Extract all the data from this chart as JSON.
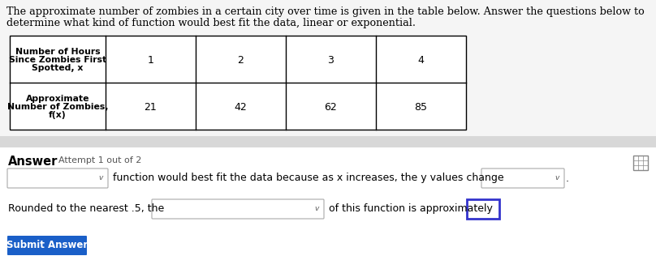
{
  "title_line1": "The approximate number of zombies in a certain city over time is given in the table below. Answer the questions below to",
  "title_line2": "determine what kind of function would best fit the data, linear or exponential.",
  "col_headers": [
    "1",
    "2",
    "3",
    "4"
  ],
  "row1_label": [
    "Number of Hours",
    "Since Zombies First",
    "Spotted, x"
  ],
  "row2_label": [
    "Approximate",
    "Number of Zombies,",
    "f(x)"
  ],
  "row2_values": [
    "21",
    "42",
    "62",
    "85"
  ],
  "answer_label": "Answer",
  "attempt_label": "Attempt 1 out of 2",
  "line1_middle": "function would best fit the data because as x increases, the y values change",
  "line2_left": "Rounded to the nearest .5, the",
  "line2_right": "of this function is approximately",
  "submit_text": "Submit Answer",
  "bg_color": "#f5f5f5",
  "white": "#ffffff",
  "black": "#000000",
  "gray_border": "#aaaaaa",
  "blue_border": "#3333cc",
  "submit_blue": "#1a5fc8",
  "submit_text_color": "#ffffff",
  "light_gray_bg": "#efefef",
  "title_fs": 9.2,
  "table_label_fs": 7.8,
  "table_val_fs": 9.0,
  "body_fs": 9.0,
  "answer_fs": 10.5,
  "attempt_fs": 8.0,
  "submit_fs": 8.5
}
